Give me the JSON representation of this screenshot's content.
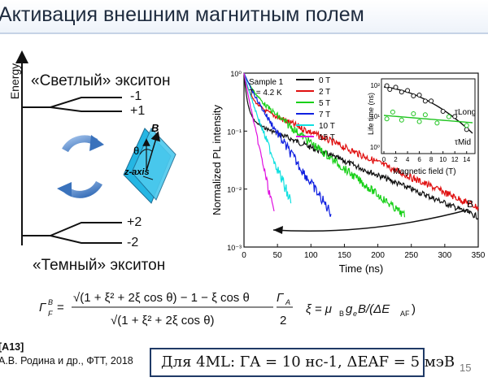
{
  "title": "Активация внешним магнитным полем",
  "diagram": {
    "energy_label": "Energy",
    "bright_label": "«Светлый» экситон",
    "dark_label": "«Темный» экситон",
    "levels": [
      "-1",
      "+1",
      "+2",
      "-2"
    ],
    "b_label": "B",
    "theta_label": "θ",
    "z_axis_label": "z-axis"
  },
  "plot": {
    "sample_label": "Sample 1",
    "temp_label": "T = 4.2 K",
    "xlabel": "Time (ns)",
    "ylabel": "Normalized PL intensity",
    "x_ticks": [
      "0",
      "50",
      "100",
      "150",
      "200",
      "250",
      "300",
      "350"
    ],
    "y_ticks": [
      "10⁰",
      "10⁻¹",
      "10⁻²",
      "10⁻³"
    ],
    "b_arrow_label": "B",
    "legend": [
      {
        "label": "0 T",
        "color": "#111111"
      },
      {
        "label": "2 T",
        "color": "#e01010"
      },
      {
        "label": "5 T",
        "color": "#18d018"
      },
      {
        "label": "7 T",
        "color": "#1020e0"
      },
      {
        "label": "10 T",
        "color": "#10e0e0"
      },
      {
        "label": "15 T",
        "color": "#e010e0"
      }
    ],
    "inset": {
      "xlabel": "Magnetic field (T)",
      "ylabel": "Life time (ns)",
      "x_ticks": [
        "0",
        "2",
        "4",
        "6",
        "8",
        "10",
        "12",
        "14"
      ],
      "y_ticks": [
        "10²",
        "10¹",
        "10⁰"
      ],
      "tau_long": "τLong",
      "tau_mid": "τMid"
    }
  },
  "formula": {
    "text": "Γ_F^B = (√(1 + ξ² + 2ξ cos θ) − 1 − ξ cos θ) / √(1 + ξ² + 2ξ cos θ) · Γ_A / 2",
    "xi": "ξ = μBgeB/(ΔEAF)"
  },
  "reference": {
    "id": "[A13]",
    "text": "А.В. Родина и др., ФТТ, 2018"
  },
  "boxed_text": "Для 4ML: ΓA = 10 нс-1, ΔEAF = 5 мэВ",
  "page_number": "15"
}
